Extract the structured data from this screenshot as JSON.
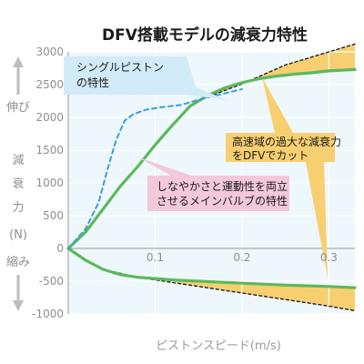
{
  "chart_data": {
    "type": "line",
    "title": "DFV搭載モデルの減衰力特性",
    "xlabel": "ピストンスピード(m/s)",
    "ylabel": {
      "upper": "伸び",
      "lines": [
        "減",
        "衰",
        "力"
      ],
      "unit": "(N)",
      "lower": "縮み"
    },
    "xlim": [
      0,
      0.33
    ],
    "ylim": [
      -1000,
      3000
    ],
    "xticks": [
      {
        "value": 0.1,
        "label": "0.1"
      },
      {
        "value": 0.2,
        "label": "0.2"
      },
      {
        "value": 0.3,
        "label": "0.3"
      }
    ],
    "yticks": [
      {
        "value": 3000,
        "label": "3000"
      },
      {
        "value": 2500,
        "label": "2500"
      },
      {
        "value": 2000,
        "label": "2000"
      },
      {
        "value": 1500,
        "label": "1500"
      },
      {
        "value": 1000,
        "label": "1000"
      },
      {
        "value": 500,
        "label": "500"
      },
      {
        "value": 0,
        "label": "0"
      },
      {
        "value": -500,
        "label": "-500"
      },
      {
        "value": -1000,
        "label": "-1000"
      }
    ],
    "grid": true,
    "series": [
      {
        "id": "dfv-extension",
        "style": "solid",
        "color": "#5cb85c",
        "points": [
          [
            0,
            0
          ],
          [
            0.02,
            250
          ],
          [
            0.04,
            600
          ],
          [
            0.06,
            950
          ],
          [
            0.08,
            1250
          ],
          [
            0.1,
            1580
          ],
          [
            0.12,
            1880
          ],
          [
            0.14,
            2170
          ],
          [
            0.16,
            2330
          ],
          [
            0.18,
            2450
          ],
          [
            0.2,
            2530
          ],
          [
            0.22,
            2590
          ],
          [
            0.24,
            2630
          ],
          [
            0.26,
            2660
          ],
          [
            0.28,
            2680
          ],
          [
            0.3,
            2710
          ],
          [
            0.33,
            2730
          ]
        ]
      },
      {
        "id": "dfv-compression",
        "style": "solid",
        "color": "#5cb85c",
        "points": [
          [
            0,
            0
          ],
          [
            0.02,
            -180
          ],
          [
            0.04,
            -320
          ],
          [
            0.06,
            -400
          ],
          [
            0.08,
            -440
          ],
          [
            0.1,
            -460
          ],
          [
            0.12,
            -480
          ],
          [
            0.15,
            -500
          ],
          [
            0.2,
            -530
          ],
          [
            0.25,
            -560
          ],
          [
            0.3,
            -580
          ],
          [
            0.33,
            -600
          ]
        ]
      },
      {
        "id": "single-piston",
        "style": "dashed",
        "color": "#3aa0d8",
        "points": [
          [
            0,
            0
          ],
          [
            0.02,
            300
          ],
          [
            0.035,
            700
          ],
          [
            0.045,
            1200
          ],
          [
            0.055,
            1650
          ],
          [
            0.065,
            1950
          ],
          [
            0.075,
            2050
          ],
          [
            0.09,
            2120
          ],
          [
            0.11,
            2160
          ],
          [
            0.13,
            2190
          ],
          [
            0.15,
            2270
          ],
          [
            0.175,
            2350
          ],
          [
            0.2,
            2430
          ]
        ]
      },
      {
        "id": "conventional-extension",
        "style": "dashed",
        "color": "#222222",
        "points": [
          [
            0.15,
            2260
          ],
          [
            0.2,
            2510
          ],
          [
            0.25,
            2800
          ],
          [
            0.3,
            3000
          ],
          [
            0.33,
            3120
          ]
        ]
      },
      {
        "id": "conventional-compression",
        "style": "dashed",
        "color": "#222222",
        "points": [
          [
            0.04,
            -320
          ],
          [
            0.08,
            -440
          ],
          [
            0.12,
            -520
          ],
          [
            0.18,
            -640
          ],
          [
            0.24,
            -760
          ],
          [
            0.3,
            -880
          ],
          [
            0.33,
            -950
          ]
        ]
      }
    ],
    "bands": [
      {
        "upper": "conventional-extension",
        "lower": "dfv-extension",
        "from": 0.15,
        "to": 0.33,
        "color": "#f8cf70"
      },
      {
        "upper": "dfv-compression",
        "lower": "conventional-compression",
        "from": 0.04,
        "to": 0.33,
        "color": "#f8cf70"
      }
    ],
    "annotations": [
      {
        "id": "single-piston-label",
        "lines": [
          "シングルピストン",
          "の特性"
        ],
        "color": "#d2ebf8"
      },
      {
        "id": "dfv-cut-label",
        "lines": [
          "高速域の過大な減衰力",
          "をDFVでカット"
        ],
        "color": "#f8cf70"
      },
      {
        "id": "balance-label",
        "lines": [
          "しなやかさと運動性を両立",
          "させるメインバルブの特性"
        ],
        "color": "#f2c8da"
      }
    ]
  }
}
